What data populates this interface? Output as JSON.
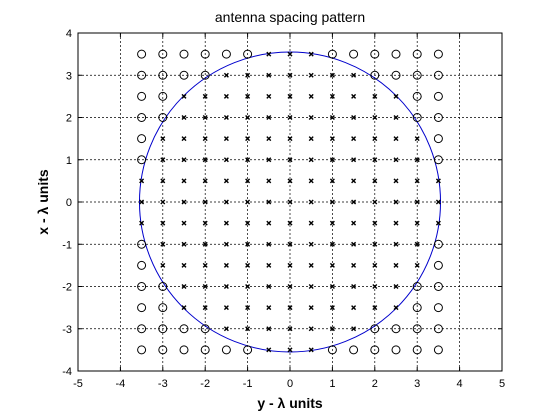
{
  "chart_data": {
    "type": "scatter",
    "title": "antenna spacing pattern",
    "xlabel": "y - λ units",
    "ylabel": "x - λ units",
    "xlim": [
      -5,
      5
    ],
    "ylim": [
      -4,
      4
    ],
    "xticks": [
      "-5",
      "-4",
      "-3",
      "-2",
      "-1",
      "0",
      "1",
      "2",
      "3",
      "4",
      "5"
    ],
    "yticks": [
      "-4",
      "-3",
      "-2",
      "-1",
      "0",
      "1",
      "2",
      "3",
      "4"
    ],
    "grid": true,
    "grid_spacing": [
      -3.5,
      3.5,
      0.5
    ],
    "circle": {
      "center": [
        0,
        0
      ],
      "radius": 3.55,
      "color": "#0000cc"
    },
    "markers": {
      "outside": {
        "symbol": "o",
        "description": "open circles outside radius"
      },
      "inside": {
        "symbol": "x",
        "description": "x marks inside radius"
      }
    }
  }
}
